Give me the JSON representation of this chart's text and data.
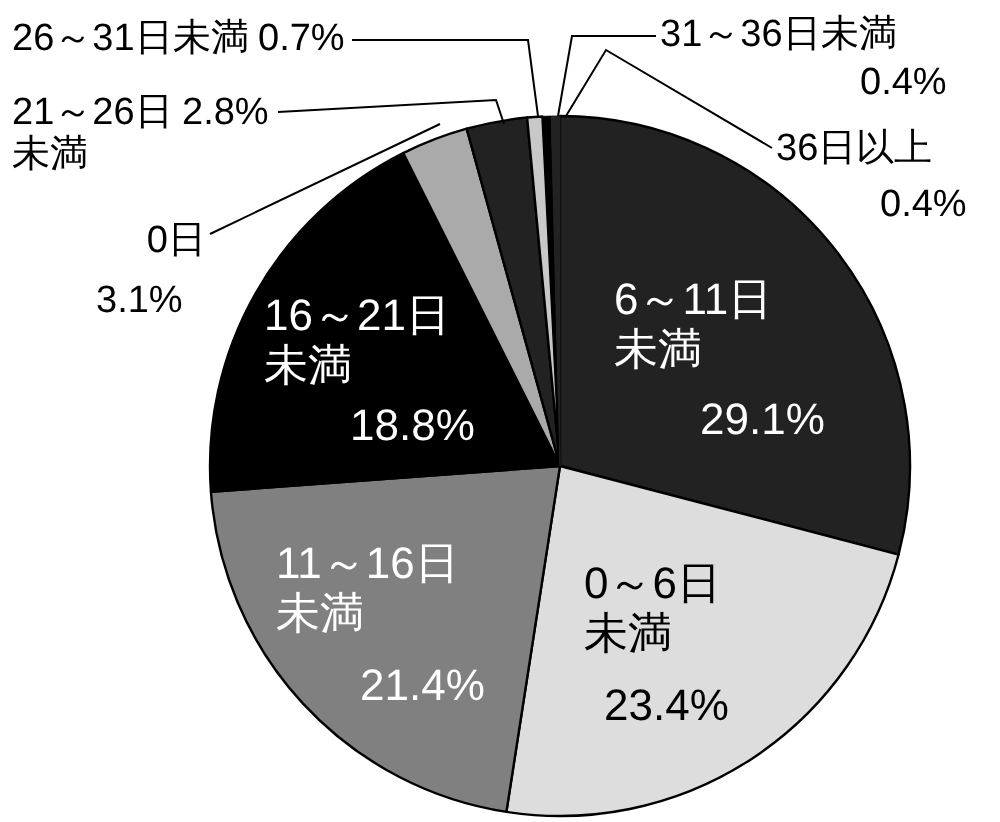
{
  "chart_data": {
    "type": "pie",
    "categories": [
      "6～11日未満",
      "0～6日未満",
      "11～16日未満",
      "16～21日未満",
      "0日",
      "21～26日未満",
      "26～31日未満",
      "31～36日未満",
      "36日以上"
    ],
    "values": [
      29.1,
      23.4,
      21.4,
      18.8,
      3.1,
      2.8,
      0.7,
      0.4,
      0.4
    ],
    "value_labels": [
      "29.1%",
      "23.4%",
      "21.4%",
      "18.8%",
      "3.1%",
      "2.8%",
      "0.7%",
      "0.4%",
      "0.4%"
    ],
    "colors": [
      "#222222",
      "#dddddd",
      "#808080",
      "#000000",
      "#aaaaaa",
      "#222222",
      "#c8c8c8",
      "#000000",
      "#222222"
    ]
  }
}
